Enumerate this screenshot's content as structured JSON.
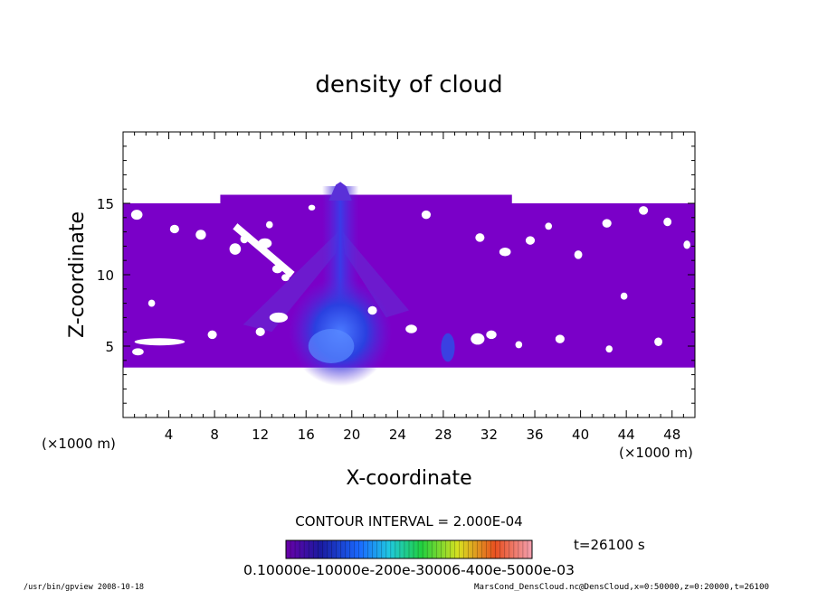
{
  "chart_data": {
    "type": "heatmap",
    "title": "density of cloud",
    "xlabel": "X-coordinate",
    "ylabel": "Z-coordinate",
    "x_unit": "(×1000 m)",
    "x_unit_right": "(×1000 m)",
    "xlim": [
      0,
      50
    ],
    "ylim": [
      0,
      20
    ],
    "xticks": [
      4,
      8,
      12,
      16,
      20,
      24,
      28,
      32,
      36,
      40,
      44,
      48
    ],
    "yticks": [
      5,
      10,
      15
    ],
    "field_extent": {
      "x": [
        0,
        50
      ],
      "z": [
        3.5,
        15
      ]
    },
    "cloud_top_peak": {
      "x": 19,
      "z": 16.5
    },
    "dense_core": {
      "x": 19,
      "z": 5
    },
    "contour_interval": "CONTOUR INTERVAL = 2.000E-04",
    "time_label": "t=26100 s",
    "colorbar_labels": "0.10000e-10000e-200e-30006-400e-5000e-03",
    "colorbar_values": [
      0.0,
      0.0001,
      0.0002,
      0.0003,
      0.0004,
      0.0005,
      0.001
    ],
    "colors": {
      "background_field": "#7a00c8",
      "mid_field": "#5a28d8",
      "core": "#2a5aff"
    }
  },
  "footer": {
    "left": "/usr/bin/gpview   2008-10-18",
    "right": "MarsCond_DensCloud.nc@DensCloud,x=0:50000,z=0:20000,t=26100"
  }
}
